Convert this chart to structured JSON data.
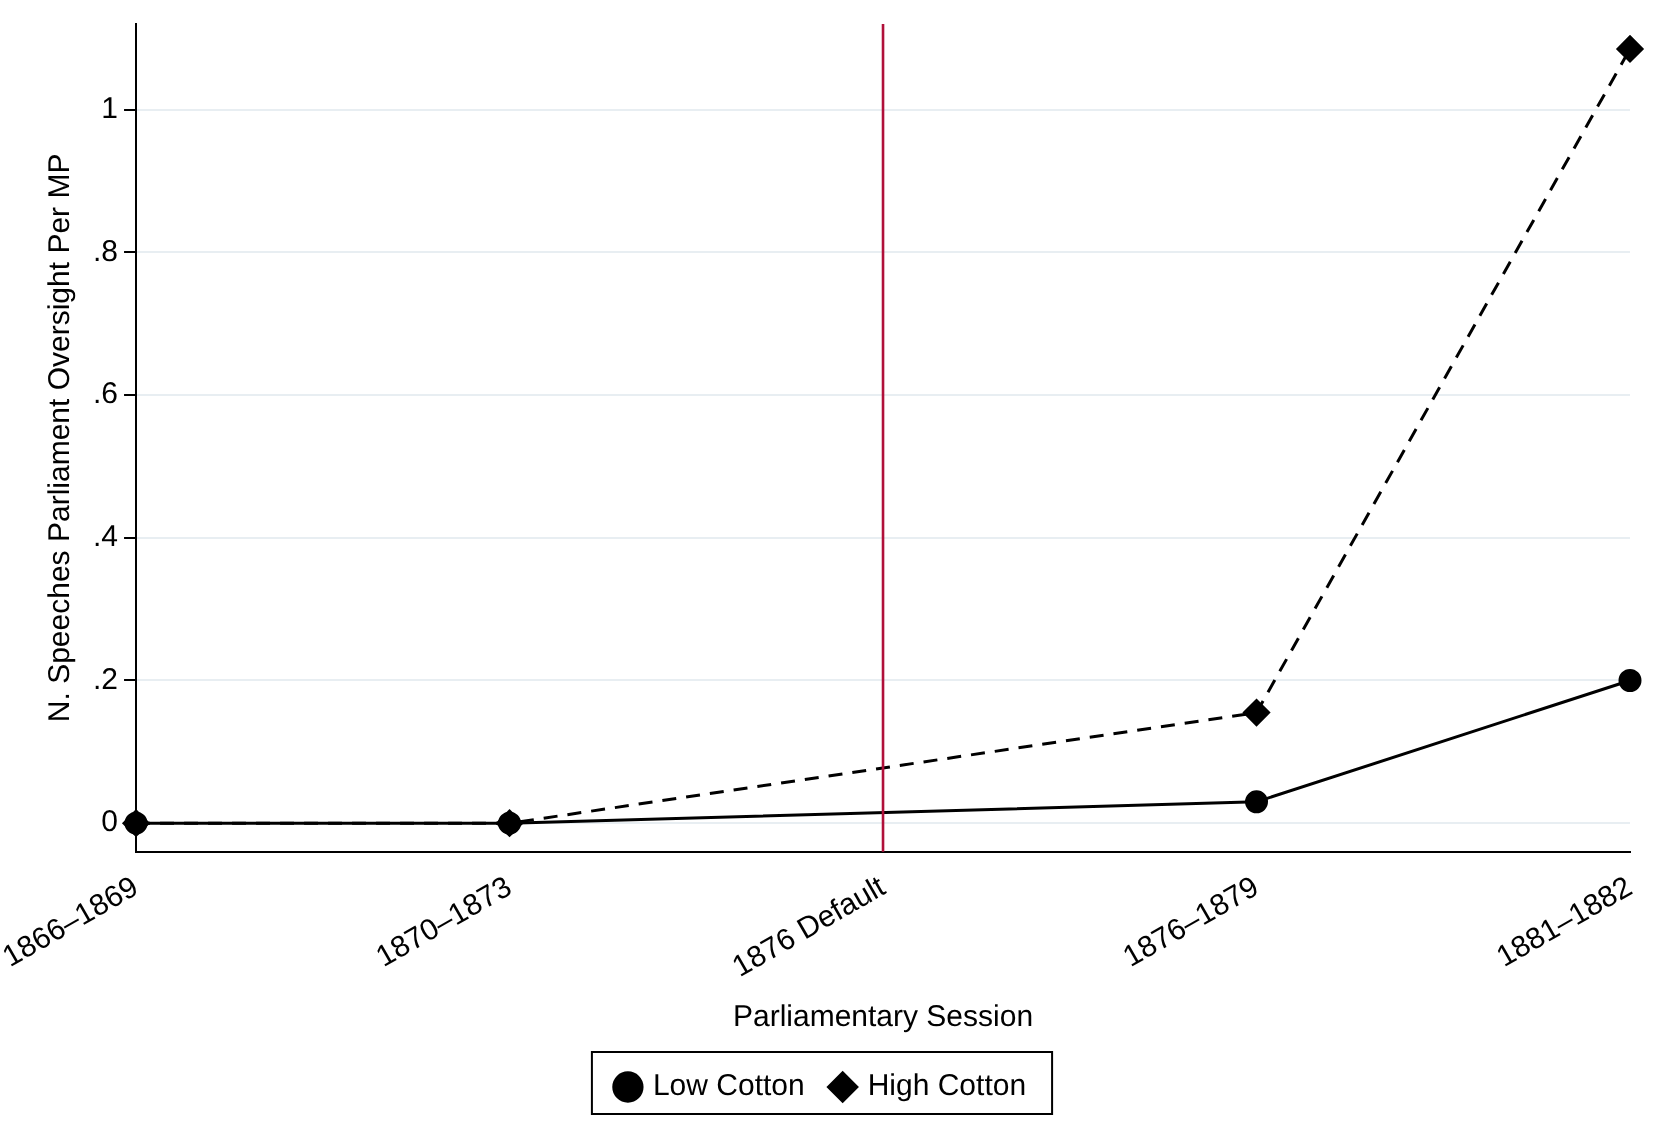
{
  "chart_data": {
    "type": "line",
    "xlabel": "Parliamentary Session",
    "ylabel": "N. Speeches Parliament Oversight Per MP",
    "categories": [
      "1866–1869",
      "1870–1873",
      "1876 Default",
      "1876–1879",
      "1881–1882"
    ],
    "series": [
      {
        "name": "Low Cotton",
        "color": "#000000",
        "values": [
          0,
          0,
          null,
          0.03,
          0.2
        ],
        "marker": "circle",
        "line_style": "solid"
      },
      {
        "name": "High Cotton",
        "color": "#000000",
        "values": [
          0,
          0,
          null,
          0.155,
          1.085
        ],
        "marker": "diamond",
        "line_style": "dashed"
      }
    ],
    "ylim": [
      -0.04,
      1.12
    ],
    "yticks": [
      0,
      {
        "value": 0.2,
        "label": ".2"
      },
      {
        "value": 0.4,
        "label": ".4"
      },
      {
        "value": 0.6,
        "label": ".6"
      },
      {
        "value": 0.8,
        "label": ".8"
      },
      1
    ],
    "ref_lines": [
      {
        "axis": "x",
        "value": "1876 Default",
        "color": "#b0103a"
      }
    ],
    "grid": "y",
    "legend": "bottom"
  }
}
